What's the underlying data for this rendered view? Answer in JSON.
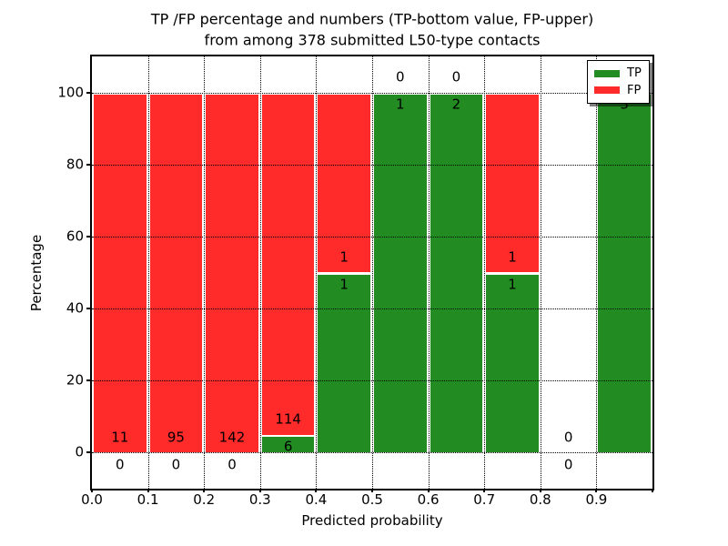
{
  "title": {
    "line1": "TP /FP percentage and numbers (TP-bottom value, FP-upper)",
    "line2": "from among 378 submitted L50-type contacts"
  },
  "axes": {
    "x_label": "Predicted probability",
    "y_label": "Percentage",
    "x_tick_labels": [
      "0.0",
      "0.1",
      "0.2",
      "0.3",
      "0.4",
      "0.5",
      "0.6",
      "0.7",
      "0.8",
      "0.9",
      ""
    ],
    "y_tick_labels": [
      "0",
      "20",
      "40",
      "60",
      "80",
      "100"
    ]
  },
  "legend": {
    "items": [
      {
        "label": "TP",
        "color": "#228B22"
      },
      {
        "label": "FP",
        "color": "#FF2A2A"
      }
    ]
  },
  "colors": {
    "tp_green": "#228B22",
    "fp_red": "#FF2A2A",
    "grid": "#000000",
    "background": "#FFFFFF"
  },
  "chart_data": {
    "type": "bar",
    "stacked": true,
    "title": "TP /FP percentage and numbers (TP-bottom value, FP-upper) from among 378 submitted L50-type contacts",
    "xlabel": "Predicted probability",
    "ylabel": "Percentage",
    "total_contacts": 378,
    "bin_edges": [
      0.0,
      0.1,
      0.2,
      0.3,
      0.4,
      0.5,
      0.6,
      0.7,
      0.8,
      0.9,
      1.0
    ],
    "categories": [
      "0.0-0.1",
      "0.1-0.2",
      "0.2-0.3",
      "0.3-0.4",
      "0.4-0.5",
      "0.5-0.6",
      "0.6-0.7",
      "0.7-0.8",
      "0.8-0.9",
      "0.9-1.0"
    ],
    "series": [
      {
        "name": "TP",
        "color": "#228B22",
        "values": [
          0,
          0,
          0,
          6,
          1,
          1,
          2,
          1,
          0,
          3
        ]
      },
      {
        "name": "FP",
        "color": "#FF2A2A",
        "values": [
          11,
          95,
          142,
          114,
          1,
          0,
          0,
          1,
          0,
          0
        ]
      }
    ],
    "tp_percent": [
      0,
      0,
      0,
      5,
      50,
      100,
      100,
      50,
      0,
      100
    ],
    "x_tick_values": [
      0,
      0.1,
      0.2,
      0.3,
      0.4,
      0.5,
      0.6,
      0.7,
      0.8,
      0.9,
      1.0
    ],
    "y_tick_values": [
      0,
      20,
      40,
      60,
      80,
      100
    ],
    "xlim": [
      0,
      1
    ],
    "ylim": [
      -10,
      110
    ],
    "grid": {
      "style": "dotted",
      "x": true,
      "y": true
    },
    "legend_position": "upper right"
  }
}
